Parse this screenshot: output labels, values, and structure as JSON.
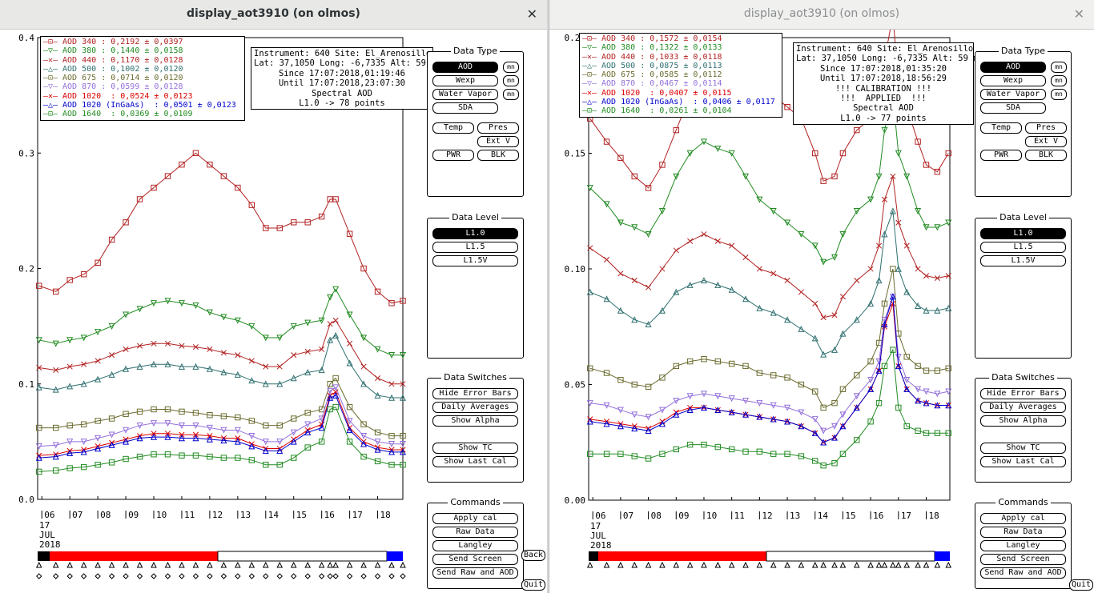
{
  "windows": [
    {
      "title": "display_aot3910 (on olmos)",
      "legend": [
        {
          "label": "AOD 340",
          "text": ": 0,2192 ± 0,0397",
          "color": "#b22222",
          "marker": "square"
        },
        {
          "label": "AOD 380",
          "text": ": 0,1440 ± 0,0158",
          "color": "#228b22",
          "marker": "down-triangle"
        },
        {
          "label": "AOD 440",
          "text": ": 0,1170 ± 0,0128",
          "color": "#b22222",
          "marker": "x"
        },
        {
          "label": "AOD 500",
          "text": ": 0,1002 ± 0,0120",
          "color": "#2f6f6f",
          "marker": "triangle"
        },
        {
          "label": "AOD 675",
          "text": ": 0,0714 ± 0,0120",
          "color": "#6b6b2f",
          "marker": "square"
        },
        {
          "label": "AOD 870",
          "text": ": 0,0599 ± 0,0128",
          "color": "#9370db",
          "marker": "down-triangle"
        },
        {
          "label": "AOD 1020",
          "text": " : 0,0524 ± 0,0123",
          "color": "#dd0000",
          "marker": "x"
        },
        {
          "label": "AOD 1020 (InGaAs)",
          "text": " : 0,0501 ± 0,0123",
          "color": "#0000cd",
          "marker": "triangle"
        },
        {
          "label": "AOD 1640",
          "text": " : 0,0369 ± 0,0109",
          "color": "#228b22",
          "marker": "square"
        }
      ],
      "info": [
        "Instrument: 640 Site: El_Arenosillo",
        "Lat: 37,1050 Long: -6,7335 Alt: 59 m",
        "Since 17:07:2018,01:19:46",
        "Until 17:07:2018,23:07:30",
        "Spectral AOD",
        "L1.0 -> 78 points"
      ],
      "y_ticks": [
        "0.4",
        "0.3",
        "0.2",
        "0.1",
        "0.0"
      ],
      "x_ticks": [
        "06",
        "07",
        "08",
        "09",
        "10",
        "11",
        "12",
        "13",
        "14",
        "15",
        "16",
        "17",
        "18"
      ],
      "date_lines": [
        "17",
        "JUL",
        "2018"
      ],
      "side_buttons": [
        "Back",
        "Quit"
      ]
    },
    {
      "title": "display_aot3910 (on olmos)",
      "legend": [
        {
          "label": "AOD 340",
          "text": ": 0,1572 ± 0,0154",
          "color": "#b22222",
          "marker": "square"
        },
        {
          "label": "AOD 380",
          "text": ": 0,1322 ± 0,0133",
          "color": "#228b22",
          "marker": "down-triangle"
        },
        {
          "label": "AOD 440",
          "text": ": 0,1033 ± 0,0118",
          "color": "#b22222",
          "marker": "x"
        },
        {
          "label": "AOD 500",
          "text": ": 0,0875 ± 0,0113",
          "color": "#2f6f6f",
          "marker": "triangle"
        },
        {
          "label": "AOD 675",
          "text": ": 0,0585 ± 0,0112",
          "color": "#6b6b2f",
          "marker": "square"
        },
        {
          "label": "AOD 870",
          "text": ": 0,0467 ± 0,0114",
          "color": "#9370db",
          "marker": "down-triangle"
        },
        {
          "label": "AOD 1020",
          "text": " : 0,0407 ± 0,0115",
          "color": "#dd0000",
          "marker": "x"
        },
        {
          "label": "AOD 1020 (InGaAs)",
          "text": " : 0,0406 ± 0,0117",
          "color": "#0000cd",
          "marker": "triangle"
        },
        {
          "label": "AOD 1640",
          "text": " : 0,0261 ± 0,0104",
          "color": "#228b22",
          "marker": "square"
        }
      ],
      "info": [
        "Instrument: 640 Site: El_Arenosillo",
        "Lat: 37,1050 Long: -6,7335 Alt: 59 m",
        "Since 17:07:2018,01:35:20",
        "Until 17:07:2018,18:56:29",
        "!!! CALIBRATION !!!",
        "!!!  APPLIED  !!!",
        "Spectral AOD",
        "L1.0 -> 77 points"
      ],
      "y_ticks": [
        "0.20",
        "0.15",
        "0.10",
        "0.05",
        "0.00"
      ],
      "x_ticks": [
        "06",
        "07",
        "08",
        "09",
        "10",
        "11",
        "12",
        "13",
        "14",
        "15",
        "16",
        "17",
        "18"
      ],
      "date_lines": [
        "17",
        "JUL",
        "2018"
      ],
      "side_buttons": [
        "Quit"
      ]
    }
  ],
  "controls": {
    "data_type": {
      "title": "Data Type",
      "buttons": [
        "AOD",
        "Wexp",
        "Water Vapor",
        "SDA"
      ],
      "selected": "AOD",
      "mini": "mn",
      "extra": [
        "Temp",
        "Pres",
        "Ext V",
        "PWR",
        "BLK"
      ]
    },
    "data_level": {
      "title": "Data Level",
      "buttons": [
        "L1.0",
        "L1.5",
        "L1.5V"
      ],
      "selected": "L1.0"
    },
    "data_switches": {
      "title": "Data Switches",
      "buttons": [
        "Hide Error Bars",
        "Daily Averages",
        "Show Alpha",
        "Show TC",
        "Show Last Cal"
      ]
    },
    "commands": {
      "title": "Commands",
      "buttons": [
        "Apply cal",
        "Raw Data",
        "Langley",
        "Send Screen",
        "Send Raw and AOD"
      ]
    }
  },
  "chart_data": [
    {
      "type": "line",
      "title": "",
      "xlabel": "",
      "ylabel": "",
      "xlim": [
        5.85,
        18.9
      ],
      "ylim": [
        0,
        0.4
      ],
      "x": [
        5.9,
        6.5,
        7.0,
        7.5,
        8.0,
        8.5,
        9.0,
        9.5,
        10.0,
        10.5,
        11.0,
        11.5,
        12.0,
        12.5,
        13.0,
        13.5,
        14.0,
        14.5,
        15.0,
        15.5,
        16.0,
        16.3,
        16.5,
        17.0,
        17.5,
        18.0,
        18.5,
        18.9
      ],
      "series": [
        {
          "name": "AOD 340",
          "color": "#b22222",
          "marker": "square",
          "values": [
            0.185,
            0.18,
            0.19,
            0.195,
            0.205,
            0.225,
            0.24,
            0.26,
            0.27,
            0.28,
            0.29,
            0.3,
            0.29,
            0.28,
            0.27,
            0.255,
            0.235,
            0.235,
            0.24,
            0.24,
            0.245,
            0.26,
            0.26,
            0.23,
            0.2,
            0.18,
            0.17,
            0.172
          ]
        },
        {
          "name": "AOD 380",
          "color": "#228b22",
          "marker": "down-triangle",
          "values": [
            0.138,
            0.135,
            0.138,
            0.14,
            0.145,
            0.15,
            0.16,
            0.165,
            0.17,
            0.172,
            0.17,
            0.168,
            0.162,
            0.158,
            0.155,
            0.15,
            0.14,
            0.14,
            0.15,
            0.153,
            0.155,
            0.175,
            0.182,
            0.16,
            0.14,
            0.13,
            0.125,
            0.125
          ]
        },
        {
          "name": "AOD 440",
          "color": "#b22222",
          "marker": "x",
          "values": [
            0.114,
            0.112,
            0.115,
            0.117,
            0.12,
            0.125,
            0.13,
            0.133,
            0.135,
            0.135,
            0.133,
            0.132,
            0.13,
            0.127,
            0.125,
            0.12,
            0.115,
            0.115,
            0.125,
            0.128,
            0.13,
            0.152,
            0.155,
            0.135,
            0.115,
            0.105,
            0.1,
            0.1
          ]
        },
        {
          "name": "AOD 500",
          "color": "#2f6f6f",
          "marker": "triangle",
          "values": [
            0.097,
            0.095,
            0.098,
            0.1,
            0.104,
            0.108,
            0.113,
            0.115,
            0.117,
            0.117,
            0.115,
            0.115,
            0.113,
            0.11,
            0.108,
            0.103,
            0.1,
            0.1,
            0.105,
            0.11,
            0.112,
            0.138,
            0.142,
            0.118,
            0.1,
            0.09,
            0.088,
            0.088
          ]
        },
        {
          "name": "AOD 675",
          "color": "#6b6b2f",
          "marker": "square",
          "values": [
            0.062,
            0.062,
            0.064,
            0.065,
            0.068,
            0.07,
            0.074,
            0.076,
            0.078,
            0.078,
            0.076,
            0.075,
            0.073,
            0.072,
            0.071,
            0.068,
            0.064,
            0.064,
            0.07,
            0.075,
            0.078,
            0.1,
            0.105,
            0.08,
            0.065,
            0.058,
            0.055,
            0.055
          ]
        },
        {
          "name": "AOD 870",
          "color": "#9370db",
          "marker": "down-triangle",
          "values": [
            0.046,
            0.047,
            0.05,
            0.05,
            0.053,
            0.056,
            0.06,
            0.064,
            0.066,
            0.066,
            0.064,
            0.064,
            0.062,
            0.06,
            0.06,
            0.055,
            0.05,
            0.05,
            0.058,
            0.065,
            0.07,
            0.094,
            0.097,
            0.068,
            0.055,
            0.05,
            0.048,
            0.048
          ]
        },
        {
          "name": "AOD 1020",
          "color": "#dd0000",
          "marker": "x",
          "values": [
            0.038,
            0.039,
            0.042,
            0.043,
            0.046,
            0.049,
            0.052,
            0.055,
            0.057,
            0.057,
            0.056,
            0.056,
            0.055,
            0.053,
            0.053,
            0.048,
            0.044,
            0.044,
            0.052,
            0.06,
            0.065,
            0.09,
            0.093,
            0.062,
            0.05,
            0.045,
            0.043,
            0.043
          ]
        },
        {
          "name": "AOD 1020 (InGaAs)",
          "color": "#0000cd",
          "marker": "triangle",
          "values": [
            0.036,
            0.037,
            0.04,
            0.041,
            0.044,
            0.047,
            0.05,
            0.053,
            0.054,
            0.054,
            0.053,
            0.053,
            0.052,
            0.051,
            0.05,
            0.046,
            0.042,
            0.042,
            0.05,
            0.058,
            0.062,
            0.088,
            0.09,
            0.06,
            0.048,
            0.043,
            0.041,
            0.041
          ]
        },
        {
          "name": "AOD 1640",
          "color": "#228b22",
          "marker": "square",
          "values": [
            0.024,
            0.025,
            0.027,
            0.028,
            0.03,
            0.032,
            0.035,
            0.037,
            0.039,
            0.039,
            0.038,
            0.038,
            0.037,
            0.036,
            0.036,
            0.034,
            0.03,
            0.03,
            0.036,
            0.045,
            0.05,
            0.078,
            0.08,
            0.05,
            0.037,
            0.033,
            0.03,
            0.03
          ]
        }
      ]
    },
    {
      "type": "line",
      "title": "",
      "xlabel": "",
      "ylabel": "",
      "xlim": [
        5.85,
        18.85
      ],
      "ylim": [
        0,
        0.2
      ],
      "x": [
        5.9,
        6.5,
        7.0,
        7.5,
        8.0,
        8.5,
        9.0,
        9.5,
        10.0,
        10.5,
        11.0,
        11.5,
        12.0,
        12.5,
        13.0,
        13.5,
        14.0,
        14.3,
        14.7,
        15.0,
        15.5,
        16.0,
        16.3,
        16.5,
        16.8,
        17.0,
        17.3,
        17.7,
        18.0,
        18.4,
        18.8
      ],
      "series": [
        {
          "name": "AOD 340",
          "color": "#b22222",
          "marker": "square",
          "values": [
            0.165,
            0.155,
            0.148,
            0.14,
            0.135,
            0.145,
            0.16,
            0.175,
            0.19,
            0.2,
            0.195,
            0.18,
            0.172,
            0.175,
            0.17,
            0.165,
            0.15,
            0.138,
            0.14,
            0.15,
            0.16,
            0.165,
            0.17,
            0.19,
            0.21,
            0.18,
            0.17,
            0.155,
            0.145,
            0.142,
            0.15
          ]
        },
        {
          "name": "AOD 380",
          "color": "#228b22",
          "marker": "down-triangle",
          "values": [
            0.135,
            0.128,
            0.12,
            0.118,
            0.115,
            0.125,
            0.14,
            0.15,
            0.155,
            0.152,
            0.15,
            0.14,
            0.13,
            0.125,
            0.12,
            0.115,
            0.11,
            0.103,
            0.105,
            0.115,
            0.125,
            0.13,
            0.14,
            0.16,
            0.175,
            0.15,
            0.14,
            0.125,
            0.118,
            0.118,
            0.12
          ]
        },
        {
          "name": "AOD 440",
          "color": "#b22222",
          "marker": "x",
          "values": [
            0.109,
            0.104,
            0.098,
            0.095,
            0.092,
            0.1,
            0.108,
            0.112,
            0.115,
            0.112,
            0.11,
            0.105,
            0.1,
            0.098,
            0.095,
            0.09,
            0.085,
            0.079,
            0.08,
            0.088,
            0.095,
            0.1,
            0.11,
            0.13,
            0.14,
            0.12,
            0.11,
            0.1,
            0.097,
            0.096,
            0.097
          ]
        },
        {
          "name": "AOD 500",
          "color": "#2f6f6f",
          "marker": "triangle",
          "values": [
            0.09,
            0.087,
            0.082,
            0.078,
            0.076,
            0.082,
            0.09,
            0.093,
            0.095,
            0.093,
            0.091,
            0.087,
            0.083,
            0.081,
            0.078,
            0.074,
            0.07,
            0.063,
            0.065,
            0.072,
            0.078,
            0.085,
            0.095,
            0.115,
            0.125,
            0.1,
            0.09,
            0.084,
            0.082,
            0.082,
            0.083
          ]
        },
        {
          "name": "AOD 675",
          "color": "#6b6b2f",
          "marker": "square",
          "values": [
            0.057,
            0.055,
            0.052,
            0.05,
            0.049,
            0.053,
            0.058,
            0.06,
            0.061,
            0.06,
            0.059,
            0.058,
            0.055,
            0.054,
            0.053,
            0.05,
            0.047,
            0.04,
            0.042,
            0.048,
            0.054,
            0.06,
            0.068,
            0.085,
            0.1,
            0.072,
            0.062,
            0.058,
            0.056,
            0.056,
            0.057
          ]
        },
        {
          "name": "AOD 870",
          "color": "#9370db",
          "marker": "down-triangle",
          "values": [
            0.042,
            0.041,
            0.039,
            0.037,
            0.036,
            0.039,
            0.043,
            0.045,
            0.046,
            0.045,
            0.044,
            0.043,
            0.042,
            0.041,
            0.04,
            0.038,
            0.035,
            0.03,
            0.032,
            0.037,
            0.045,
            0.052,
            0.06,
            0.078,
            0.088,
            0.062,
            0.052,
            0.048,
            0.047,
            0.046,
            0.047
          ]
        },
        {
          "name": "AOD 1020",
          "color": "#dd0000",
          "marker": "x",
          "values": [
            0.035,
            0.034,
            0.033,
            0.032,
            0.031,
            0.034,
            0.038,
            0.04,
            0.04,
            0.039,
            0.038,
            0.037,
            0.036,
            0.035,
            0.034,
            0.032,
            0.029,
            0.025,
            0.027,
            0.032,
            0.04,
            0.048,
            0.056,
            0.075,
            0.085,
            0.058,
            0.048,
            0.043,
            0.042,
            0.041,
            0.041
          ]
        },
        {
          "name": "AOD 1020 (InGaAs)",
          "color": "#0000cd",
          "marker": "triangle",
          "values": [
            0.034,
            0.033,
            0.032,
            0.031,
            0.03,
            0.033,
            0.037,
            0.039,
            0.04,
            0.039,
            0.038,
            0.037,
            0.036,
            0.035,
            0.034,
            0.032,
            0.029,
            0.025,
            0.027,
            0.032,
            0.04,
            0.048,
            0.056,
            0.076,
            0.088,
            0.058,
            0.048,
            0.043,
            0.042,
            0.041,
            0.041
          ]
        },
        {
          "name": "AOD 1640",
          "color": "#228b22",
          "marker": "square",
          "values": [
            0.02,
            0.02,
            0.02,
            0.019,
            0.018,
            0.02,
            0.022,
            0.024,
            0.024,
            0.023,
            0.022,
            0.021,
            0.021,
            0.02,
            0.02,
            0.019,
            0.017,
            0.015,
            0.016,
            0.02,
            0.026,
            0.034,
            0.042,
            0.058,
            0.065,
            0.04,
            0.032,
            0.03,
            0.029,
            0.029,
            0.029
          ]
        }
      ]
    }
  ]
}
